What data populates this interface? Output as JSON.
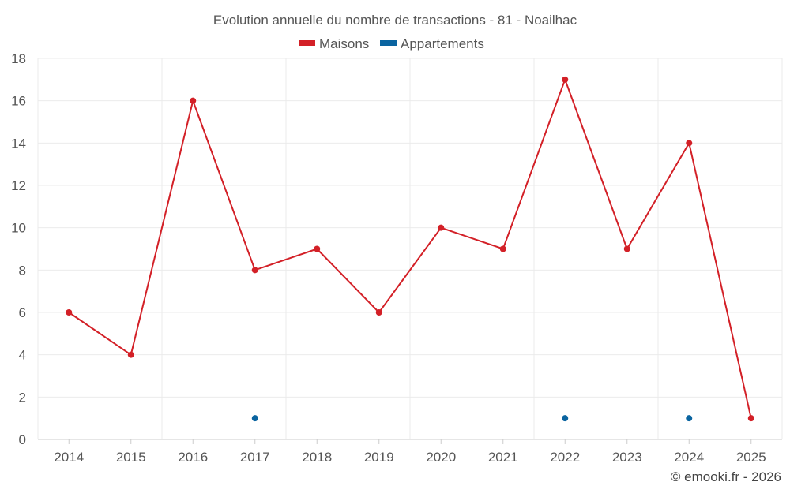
{
  "chart_data": {
    "type": "line",
    "title": "Evolution annuelle du nombre de transactions - 81 - Noailhac",
    "categories": [
      "2014",
      "2015",
      "2016",
      "2017",
      "2018",
      "2019",
      "2020",
      "2021",
      "2022",
      "2023",
      "2024",
      "2025"
    ],
    "series": [
      {
        "name": "Maisons",
        "color": "#d32027",
        "values": [
          6,
          4,
          16,
          8,
          9,
          6,
          10,
          9,
          17,
          9,
          14,
          1
        ]
      },
      {
        "name": "Appartements",
        "color": "#0a64a0",
        "values": [
          null,
          null,
          null,
          1,
          null,
          null,
          null,
          null,
          1,
          null,
          1,
          null
        ]
      }
    ],
    "ylim": [
      0,
      18
    ],
    "yticks": [
      0,
      2,
      4,
      6,
      8,
      10,
      12,
      14,
      16,
      18
    ],
    "xlabel": "",
    "ylabel": "",
    "grid": true,
    "legend_position": "top-center"
  },
  "credit": "© emooki.fr - 2026",
  "colors": {
    "grid": "#ebebeb",
    "axis_text": "#555555",
    "title_text": "#555555"
  }
}
